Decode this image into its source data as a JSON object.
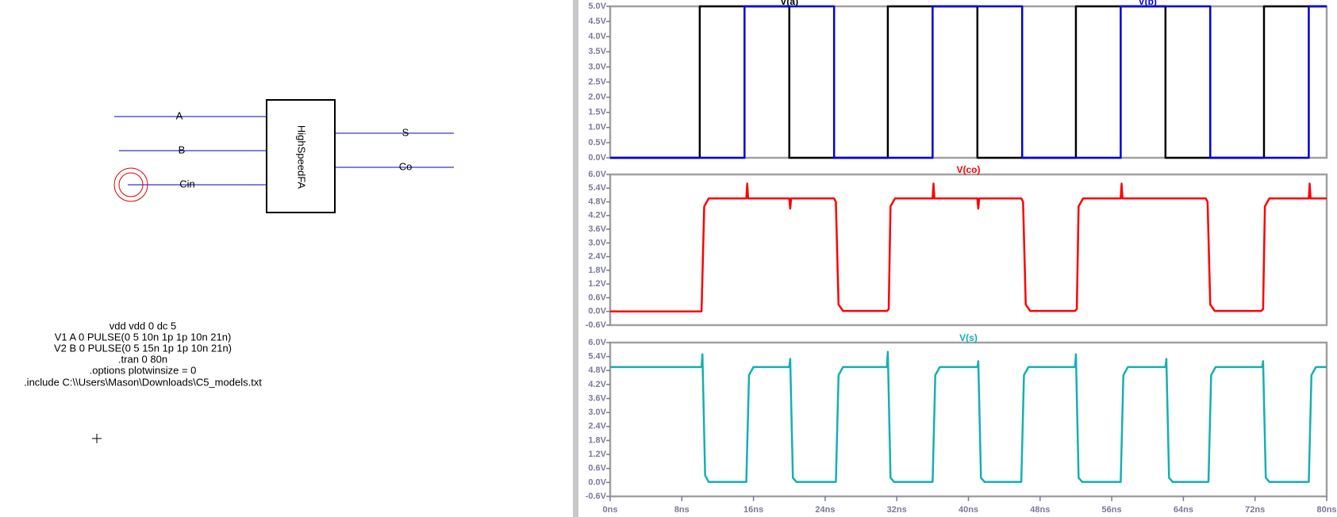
{
  "schematic": {
    "component": "HighSpeedFA",
    "inputs": [
      "A",
      "B",
      "Cin"
    ],
    "outputs": [
      "S",
      "Co"
    ],
    "directives": [
      "vdd vdd 0 dc 5",
      "V1 A 0 PULSE(0 5 10n 1p 1p 10n 21n)",
      "V2 B 0 PULSE(0 5 15n 1p 1p 10n 21n)",
      ".tran 0 80n",
      ".options plotwinsize = 0",
      ".include C:\\\\Users\\Mason\\Downloads\\C5_models.txt"
    ]
  },
  "chart_data": [
    {
      "type": "line",
      "xlim": [
        0,
        80
      ],
      "ylim": [
        0,
        5
      ],
      "yticks": [
        {
          "value": 0,
          "label": "0.0V"
        },
        {
          "value": 0.5,
          "label": "0.5V"
        },
        {
          "value": 1,
          "label": "1.0V"
        },
        {
          "value": 1.5,
          "label": "1.5V"
        },
        {
          "value": 2,
          "label": "2.0V"
        },
        {
          "value": 2.5,
          "label": "2.5V"
        },
        {
          "value": 3,
          "label": "3.0V"
        },
        {
          "value": 3.5,
          "label": "3.5V"
        },
        {
          "value": 4,
          "label": "4.0V"
        },
        {
          "value": 4.5,
          "label": "4.5V"
        },
        {
          "value": 5,
          "label": "5.0V"
        }
      ],
      "series": [
        {
          "name": "V(a)",
          "color": "#000000",
          "x": [
            0,
            10,
            10,
            20,
            20,
            31,
            31,
            41,
            41,
            52,
            52,
            62,
            62,
            73,
            73,
            80
          ],
          "values": [
            0,
            0,
            5,
            5,
            0,
            0,
            5,
            5,
            0,
            0,
            5,
            5,
            0,
            0,
            5,
            5
          ]
        },
        {
          "name": "V(b)",
          "color": "#0000e0",
          "x": [
            0,
            15,
            15,
            25,
            25,
            36,
            36,
            46,
            46,
            57,
            57,
            67,
            67,
            78,
            78,
            80
          ],
          "values": [
            0,
            0,
            5,
            5,
            0,
            0,
            5,
            5,
            0,
            0,
            5,
            5,
            0,
            0,
            5,
            5
          ]
        }
      ]
    },
    {
      "type": "line",
      "xlim": [
        0,
        80
      ],
      "ylim": [
        -0.6,
        6
      ],
      "yticks": [
        {
          "value": -0.6,
          "label": "-0.6V"
        },
        {
          "value": 0,
          "label": "0.0V"
        },
        {
          "value": 0.6,
          "label": "0.6V"
        },
        {
          "value": 1.2,
          "label": "1.2V"
        },
        {
          "value": 1.8,
          "label": "1.8V"
        },
        {
          "value": 2.4,
          "label": "2.4V"
        },
        {
          "value": 3,
          "label": "3.0V"
        },
        {
          "value": 3.6,
          "label": "3.6V"
        },
        {
          "value": 4.2,
          "label": "4.2V"
        },
        {
          "value": 4.8,
          "label": "4.8V"
        },
        {
          "value": 5.4,
          "label": "5.4V"
        },
        {
          "value": 6,
          "label": "6.0V"
        }
      ],
      "series": [
        {
          "name": "V(co)",
          "color": "#ff0000",
          "x": [
            0,
            10.2,
            10.5,
            11,
            15.2,
            15.3,
            15.4,
            20,
            20.1,
            20.2,
            25,
            25.2,
            25.5,
            26,
            30.9,
            31.1,
            31.3,
            31.8,
            36,
            36.1,
            36.2,
            41,
            41.1,
            41.2,
            45.9,
            46.1,
            46.4,
            46.9,
            51.9,
            52.1,
            52.3,
            52.8,
            57,
            57.1,
            57.2,
            66.5,
            66.7,
            67,
            67.5,
            72.7,
            72.9,
            73.1,
            73.6,
            78,
            78.1,
            78.2,
            80
          ],
          "values": [
            0,
            0,
            4.6,
            4.95,
            4.95,
            5.6,
            4.95,
            4.95,
            4.5,
            4.95,
            4.95,
            4.8,
            0.3,
            0.02,
            0.02,
            0.1,
            4.6,
            4.95,
            4.95,
            5.6,
            4.95,
            4.95,
            4.5,
            4.95,
            4.95,
            4.8,
            0.3,
            0.02,
            0.02,
            0.1,
            4.6,
            4.95,
            4.95,
            5.6,
            4.95,
            4.95,
            4.8,
            0.3,
            0.02,
            0.02,
            0.1,
            4.6,
            4.95,
            4.95,
            5.6,
            4.95,
            4.95
          ]
        }
      ]
    },
    {
      "type": "line",
      "xlim": [
        0,
        80
      ],
      "ylim": [
        -0.6,
        6
      ],
      "yticks": [
        {
          "value": -0.6,
          "label": "-0.6V"
        },
        {
          "value": 0,
          "label": "0.0V"
        },
        {
          "value": 0.6,
          "label": "0.6V"
        },
        {
          "value": 1.2,
          "label": "1.2V"
        },
        {
          "value": 1.8,
          "label": "1.8V"
        },
        {
          "value": 2.4,
          "label": "2.4V"
        },
        {
          "value": 3,
          "label": "3.0V"
        },
        {
          "value": 3.6,
          "label": "3.6V"
        },
        {
          "value": 4.2,
          "label": "4.2V"
        },
        {
          "value": 4.8,
          "label": "4.8V"
        },
        {
          "value": 5.4,
          "label": "5.4V"
        },
        {
          "value": 6,
          "label": "6.0V"
        }
      ],
      "xticks": [
        {
          "value": 0,
          "label": "0ns"
        },
        {
          "value": 8,
          "label": "8ns"
        },
        {
          "value": 16,
          "label": "16ns"
        },
        {
          "value": 24,
          "label": "24ns"
        },
        {
          "value": 32,
          "label": "32ns"
        },
        {
          "value": 40,
          "label": "40ns"
        },
        {
          "value": 48,
          "label": "48ns"
        },
        {
          "value": 56,
          "label": "56ns"
        },
        {
          "value": 64,
          "label": "64ns"
        },
        {
          "value": 72,
          "label": "72ns"
        },
        {
          "value": 80,
          "label": "80ns"
        }
      ],
      "series": [
        {
          "name": "V(s)",
          "color": "#14b0b0",
          "x": [
            0,
            10.2,
            10.3,
            10.6,
            11,
            15.2,
            15.5,
            16,
            20,
            20.1,
            20.4,
            20.8,
            25.2,
            25.5,
            26,
            30.9,
            31,
            31.3,
            31.7,
            36,
            36.3,
            36.8,
            41,
            41.1,
            41.4,
            41.8,
            45.9,
            46.2,
            46.7,
            51.9,
            52,
            52.3,
            52.7,
            57,
            57.3,
            57.8,
            62,
            62.1,
            62.4,
            62.8,
            66.8,
            67.1,
            67.6,
            72.8,
            72.9,
            73.2,
            73.6,
            78,
            78.3,
            78.8,
            80
          ],
          "values": [
            4.95,
            4.95,
            5.5,
            0.3,
            0.02,
            0.02,
            4.6,
            4.95,
            4.95,
            5.3,
            0.2,
            0.02,
            0.02,
            4.6,
            4.95,
            4.95,
            5.6,
            0.2,
            0.02,
            0.02,
            4.6,
            4.95,
            4.95,
            5.2,
            0.2,
            0.02,
            0.02,
            4.6,
            4.95,
            4.95,
            5.5,
            0.2,
            0.02,
            0.02,
            4.6,
            4.95,
            4.95,
            5.3,
            0.2,
            0.02,
            0.02,
            4.6,
            4.95,
            4.95,
            5.2,
            0.2,
            0.02,
            0.02,
            4.6,
            4.95,
            4.95
          ]
        }
      ]
    }
  ]
}
